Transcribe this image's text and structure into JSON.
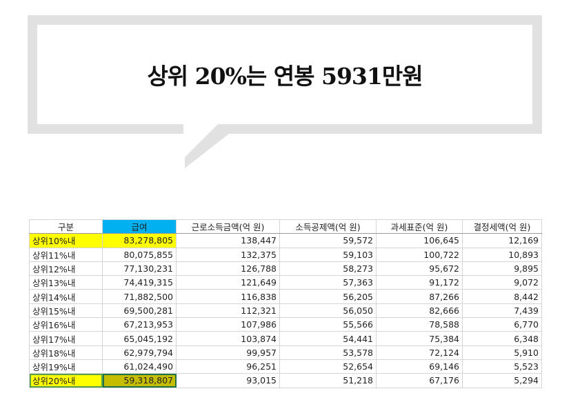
{
  "title": "상위 20%는 연봉 5931만원",
  "table": {
    "header": [
      "구분",
      "급여",
      "근로소득금액(억 원)",
      "소득공제액(억 원)",
      "과세표준(억 원)",
      "결정세액(억 원)"
    ],
    "rows": [
      [
        "상위10%내",
        "83,278,805",
        "138,447",
        "59,572",
        "106,645",
        "12,169"
      ],
      [
        "상위11%내",
        "80,075,855",
        "132,375",
        "59,103",
        "100,722",
        "10,893"
      ],
      [
        "상위12%내",
        "77,130,231",
        "126,788",
        "58,273",
        "95,672",
        "9,895"
      ],
      [
        "상위13%내",
        "74,419,315",
        "121,649",
        "57,363",
        "91,172",
        "9,072"
      ],
      [
        "상위14%내",
        "71,882,500",
        "116,838",
        "56,205",
        "87,266",
        "8,442"
      ],
      [
        "상위15%내",
        "69,500,281",
        "112,321",
        "56,050",
        "82,666",
        "7,439"
      ],
      [
        "상위16%내",
        "67,213,953",
        "107,986",
        "55,566",
        "78,588",
        "6,770"
      ],
      [
        "상위17%내",
        "65,045,192",
        "103,874",
        "54,441",
        "75,384",
        "6,348"
      ],
      [
        "상위18%내",
        "62,979,794",
        "99,957",
        "53,578",
        "72,124",
        "5,910"
      ],
      [
        "상위19%내",
        "61,024,490",
        "96,251",
        "52,654",
        "69,146",
        "5,523"
      ],
      [
        "상위20%내",
        "59,318,807",
        "93,015",
        "51,218",
        "67,176",
        "5,294"
      ]
    ]
  }
}
